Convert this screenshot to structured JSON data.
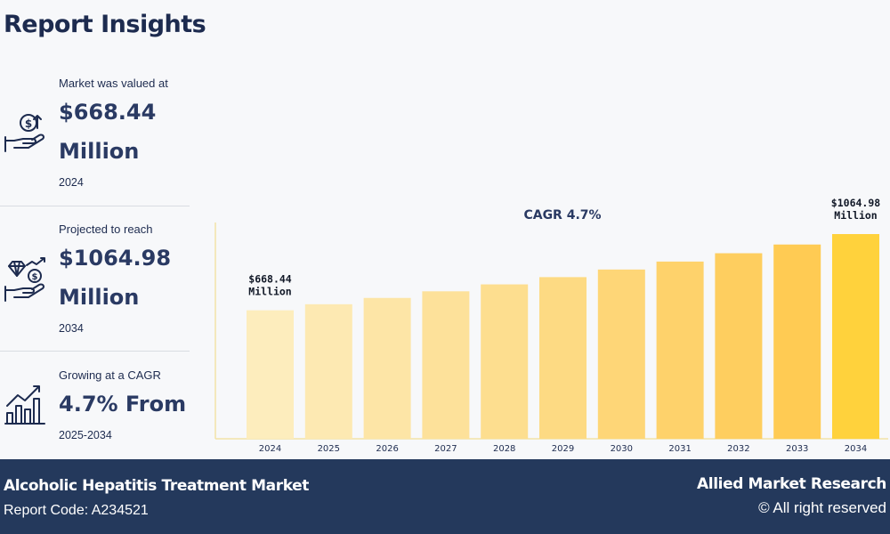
{
  "header": {
    "title": "Report Insights"
  },
  "insights": [
    {
      "lead": "Market was valued at",
      "value": "$668.44",
      "unit": "Million",
      "sub": "2024",
      "icon": "money-hand-icon"
    },
    {
      "lead": "Projected to reach",
      "value": "$1064.98",
      "unit": "Million",
      "sub": "2034",
      "icon": "diamond-growth-hand-icon"
    },
    {
      "lead": "Growing at a CAGR",
      "value": "4.7% From",
      "unit": "",
      "sub": "2025-2034",
      "icon": "bar-growth-icon"
    }
  ],
  "chart_data": {
    "type": "bar",
    "title": "CAGR 4.7%",
    "categories": [
      "2024",
      "2025",
      "2026",
      "2027",
      "2028",
      "2029",
      "2030",
      "2031",
      "2032",
      "2033",
      "2034"
    ],
    "values": [
      668.44,
      699.86,
      732.75,
      767.19,
      803.25,
      841.0,
      880.53,
      921.92,
      965.25,
      1010.62,
      1064.98
    ],
    "annotations": [
      {
        "index": 0,
        "line1": "$668.44",
        "line2": "Million"
      },
      {
        "index": 10,
        "line1": "$1064.98",
        "line2": "Million"
      }
    ],
    "colors": [
      "#fdedbd",
      "#fde9b2",
      "#fde5a6",
      "#fde19a",
      "#fdde8f",
      "#fdda83",
      "#fed677",
      "#fed26b",
      "#fece5f",
      "#ffcb53",
      "#ffd23c"
    ],
    "axis_color": "#f2e3a8",
    "ylim": [
      0,
      1200
    ],
    "grid": false
  },
  "footer": {
    "market_name": "Alcoholic Hepatitis Treatment Market",
    "report_code": "Report Code: A234521",
    "brand": "Allied Market Research",
    "rights": "© All right reserved"
  }
}
